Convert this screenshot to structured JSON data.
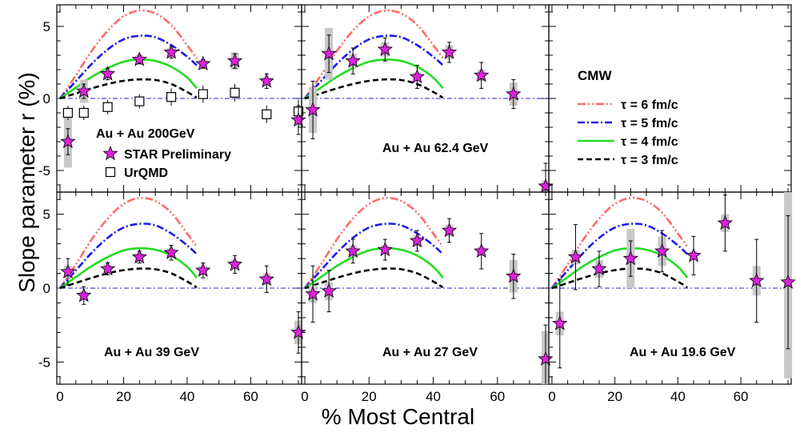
{
  "figure": {
    "xlabel": "% Most Central",
    "ylabel": "Slope parameter r (%)"
  },
  "colors": {
    "star": "#dd22dd",
    "tau6": "#ff6a6a",
    "tau5": "#1a1aee",
    "tau4": "#22dd22",
    "tau3": "#000000",
    "zero_line": "#2222cc",
    "syst_box": "#c8c8c8"
  },
  "chart_data": {
    "type": "scatter",
    "layout": "2x3 grid of panels sharing axes",
    "xlim": [
      -1,
      76
    ],
    "ylim": [
      -6.5,
      6.5
    ],
    "x_ticks": [
      0,
      20,
      40,
      60
    ],
    "y_ticks": [
      -5,
      0,
      5
    ],
    "grid": false,
    "model_curves": {
      "x": [
        0,
        5,
        10,
        15,
        20,
        25,
        30,
        35,
        40,
        43
      ],
      "series": [
        {
          "name": "τ = 6 fm/c",
          "style": "dash-dot-dot",
          "color": "#ff6a6a",
          "y": [
            0,
            1.6,
            3.3,
            4.7,
            5.7,
            6.1,
            5.9,
            5.1,
            3.7,
            2.8
          ]
        },
        {
          "name": "τ = 5 fm/c",
          "style": "dash-dot",
          "color": "#1a1aee",
          "y": [
            0,
            1.2,
            2.4,
            3.4,
            4.1,
            4.35,
            4.25,
            3.7,
            2.9,
            2.3
          ]
        },
        {
          "name": "τ = 4 fm/c",
          "style": "solid",
          "color": "#22dd22",
          "y": [
            0,
            0.75,
            1.5,
            2.1,
            2.55,
            2.7,
            2.6,
            2.2,
            1.45,
            0.7
          ]
        },
        {
          "name": "τ = 3 fm/c",
          "style": "dash",
          "color": "#000000",
          "y": [
            0,
            0.35,
            0.7,
            1.0,
            1.22,
            1.32,
            1.28,
            1.0,
            0.45,
            0.05
          ]
        }
      ]
    },
    "panels": [
      {
        "label": "Au + Au 200GeV",
        "legend": [
          "STAR Preliminary",
          "UrQMD"
        ],
        "star": [
          {
            "x": 2.5,
            "y": -3.0,
            "err": 0.9,
            "sys": 1.8
          },
          {
            "x": 7.5,
            "y": 0.5,
            "err": 0.5,
            "sys": 0.8
          },
          {
            "x": 15,
            "y": 1.7,
            "err": 0.4,
            "sys": 0.3
          },
          {
            "x": 25,
            "y": 2.7,
            "err": 0.3,
            "sys": 0.3
          },
          {
            "x": 35,
            "y": 3.2,
            "err": 0.4,
            "sys": 0.3
          },
          {
            "x": 45,
            "y": 2.4,
            "err": 0.3,
            "sys": 0.3
          },
          {
            "x": 55,
            "y": 2.6,
            "err": 0.5,
            "sys": 0.6
          },
          {
            "x": 65,
            "y": 1.2,
            "err": 0.5,
            "sys": 0.3
          },
          {
            "x": 75,
            "y": -1.5,
            "err": 1.0,
            "sys": 0.4
          }
        ],
        "urqmd": [
          {
            "x": 2.5,
            "y": -1.0,
            "err": 0.5
          },
          {
            "x": 7.5,
            "y": -1.0,
            "err": 0.5
          },
          {
            "x": 15,
            "y": -0.6,
            "err": 0.5
          },
          {
            "x": 25,
            "y": -0.2,
            "err": 0.5
          },
          {
            "x": 35,
            "y": 0.1,
            "err": 0.6
          },
          {
            "x": 45,
            "y": 0.3,
            "err": 0.6
          },
          {
            "x": 55,
            "y": 0.4,
            "err": 0.6
          },
          {
            "x": 65,
            "y": -1.1,
            "err": 0.6
          },
          {
            "x": 75,
            "y": -0.9,
            "err": 0.8
          }
        ]
      },
      {
        "label": "Au + Au 62.4 GeV",
        "legend": [],
        "star": [
          {
            "x": 2.5,
            "y": -0.8,
            "err": 2.0,
            "sys": 1.6
          },
          {
            "x": 7.5,
            "y": 3.1,
            "err": 1.3,
            "sys": 1.8
          },
          {
            "x": 15,
            "y": 2.6,
            "err": 0.9,
            "sys": 0.5
          },
          {
            "x": 25,
            "y": 3.4,
            "err": 0.8,
            "sys": 0.5
          },
          {
            "x": 35,
            "y": 1.5,
            "err": 0.8,
            "sys": 0.3
          },
          {
            "x": 45,
            "y": 3.2,
            "err": 0.7,
            "sys": 0.5
          },
          {
            "x": 55,
            "y": 1.6,
            "err": 0.9,
            "sys": 0.4
          },
          {
            "x": 65,
            "y": 0.3,
            "err": 1.0,
            "sys": 0.8
          },
          {
            "x": 75,
            "y": -6.1,
            "err": 1.6,
            "sys": 0.4
          }
        ],
        "urqmd": []
      },
      {
        "label": "",
        "legend": [
          "CMW",
          "τ = 6 fm/c",
          "τ = 5 fm/c",
          "τ = 4 fm/c",
          "τ = 3 fm/c"
        ],
        "star": [],
        "urqmd": []
      },
      {
        "label": "Au + Au 39 GeV",
        "legend": [],
        "star": [
          {
            "x": 2.5,
            "y": 1.1,
            "err": 0.9,
            "sys": 0.4
          },
          {
            "x": 7.5,
            "y": -0.5,
            "err": 0.6,
            "sys": 0.3
          },
          {
            "x": 15,
            "y": 1.3,
            "err": 0.4,
            "sys": 0.3
          },
          {
            "x": 25,
            "y": 2.1,
            "err": 0.4,
            "sys": 0.3
          },
          {
            "x": 35,
            "y": 2.4,
            "err": 0.5,
            "sys": 0.3
          },
          {
            "x": 45,
            "y": 1.2,
            "err": 0.5,
            "sys": 0.3
          },
          {
            "x": 55,
            "y": 1.6,
            "err": 0.6,
            "sys": 0.3
          },
          {
            "x": 65,
            "y": 0.6,
            "err": 0.9,
            "sys": 0.4
          },
          {
            "x": 75,
            "y": -3.0,
            "err": 1.4,
            "sys": 0.8
          }
        ],
        "urqmd": []
      },
      {
        "label": "Au + Au 27 GeV",
        "legend": [],
        "star": [
          {
            "x": 2.5,
            "y": -0.4,
            "err": 1.9,
            "sys": 0.6
          },
          {
            "x": 7.5,
            "y": -0.2,
            "err": 1.4,
            "sys": 0.6
          },
          {
            "x": 15,
            "y": 2.5,
            "err": 0.8,
            "sys": 0.4
          },
          {
            "x": 25,
            "y": 2.6,
            "err": 0.7,
            "sys": 0.3
          },
          {
            "x": 35,
            "y": 3.2,
            "err": 0.7,
            "sys": 0.4
          },
          {
            "x": 45,
            "y": 3.9,
            "err": 0.8,
            "sys": 0.4
          },
          {
            "x": 55,
            "y": 2.5,
            "err": 1.2,
            "sys": 0.3
          },
          {
            "x": 65,
            "y": 0.8,
            "err": 1.5,
            "sys": 1.1
          },
          {
            "x": 75,
            "y": -4.8,
            "err": 2.3,
            "sys": 1.9
          }
        ],
        "urqmd": []
      },
      {
        "label": "Au + Au 19.6 GeV",
        "legend": [],
        "star": [
          {
            "x": 2.5,
            "y": -2.4,
            "err": 3.0,
            "sys": 0.8
          },
          {
            "x": 7.5,
            "y": 2.1,
            "err": 2.2,
            "sys": 0.5
          },
          {
            "x": 15,
            "y": 1.3,
            "err": 1.2,
            "sys": 0.6
          },
          {
            "x": 25,
            "y": 2.0,
            "err": 1.2,
            "sys": 2.0
          },
          {
            "x": 35,
            "y": 2.5,
            "err": 1.4,
            "sys": 1.0
          },
          {
            "x": 45,
            "y": 2.2,
            "err": 1.3,
            "sys": 0.3
          },
          {
            "x": 55,
            "y": 4.4,
            "err": 1.9,
            "sys": 0.6
          },
          {
            "x": 65,
            "y": 0.5,
            "err": 2.8,
            "sys": 1.0
          },
          {
            "x": 75,
            "y": 0.4,
            "err": 4.5,
            "sys": 6.5
          }
        ],
        "urqmd": []
      }
    ]
  }
}
